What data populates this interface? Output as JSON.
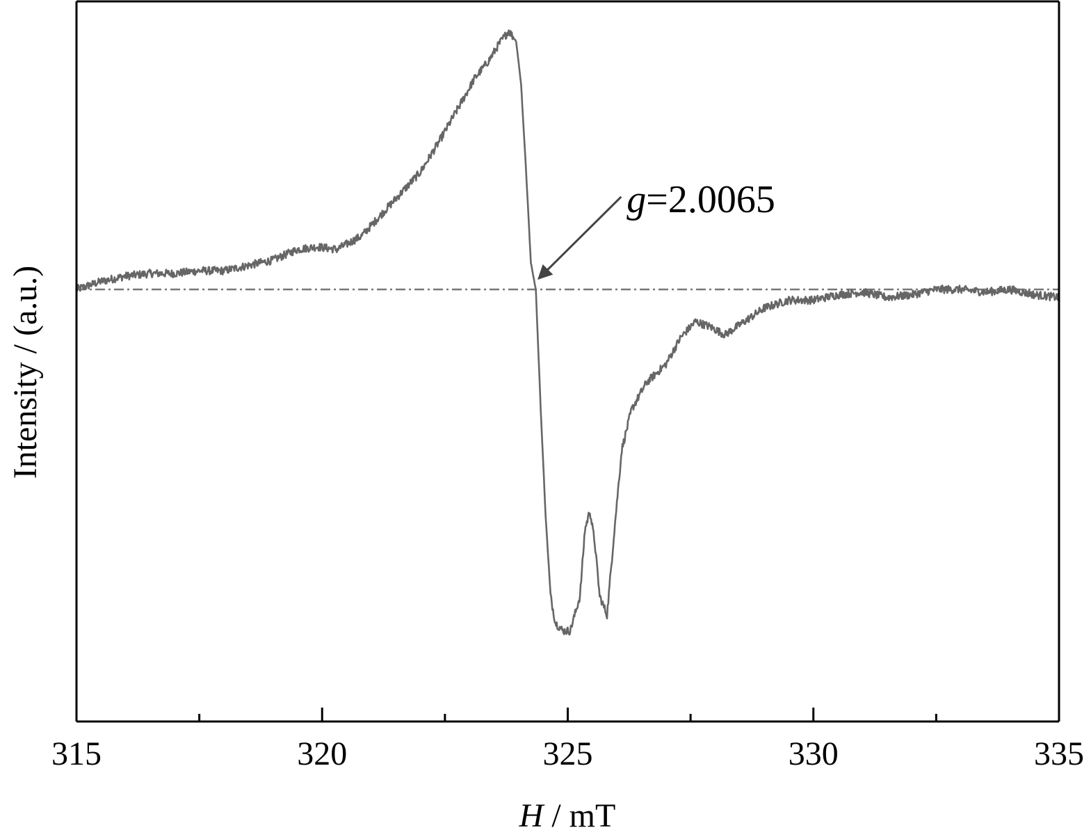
{
  "chart_data": {
    "type": "line",
    "title": "",
    "xlabel_italic": "H",
    "xlabel_rest": " / mT",
    "ylabel": "Intensity / (a.u.)",
    "xlim": [
      315,
      335
    ],
    "ylim": [
      -1.62,
      1.08
    ],
    "x_major_ticks": [
      315,
      320,
      325,
      330,
      335
    ],
    "x_minor_ticks": [
      317.5,
      322.5,
      327.5,
      332.5
    ],
    "x_tick_labels": [
      "315",
      "320",
      "325",
      "330",
      "335"
    ],
    "baseline_y": 0,
    "grid": false,
    "legend": "none",
    "colors": {
      "line": "#666666",
      "axis": "#000000",
      "baseline": "#777777",
      "arrow": "#444444"
    },
    "annotation": {
      "text_italic": "g",
      "text_rest": "=2.0065",
      "label_x": 326.2,
      "label_y": 0.29,
      "arrow_tip_x": 324.35,
      "arrow_tip_y": 0.03
    },
    "series": [
      {
        "points": [
          [
            315.0,
            0.0
          ],
          [
            315.5,
            0.03
          ],
          [
            316.0,
            0.05
          ],
          [
            316.5,
            0.06
          ],
          [
            317.0,
            0.06
          ],
          [
            317.5,
            0.07
          ],
          [
            318.0,
            0.07
          ],
          [
            318.5,
            0.09
          ],
          [
            319.0,
            0.11
          ],
          [
            319.5,
            0.15
          ],
          [
            319.9,
            0.16
          ],
          [
            320.3,
            0.15
          ],
          [
            320.8,
            0.2
          ],
          [
            321.2,
            0.28
          ],
          [
            321.6,
            0.36
          ],
          [
            322.0,
            0.44
          ],
          [
            322.4,
            0.56
          ],
          [
            322.8,
            0.69
          ],
          [
            323.1,
            0.79
          ],
          [
            323.4,
            0.86
          ],
          [
            323.6,
            0.92
          ],
          [
            323.8,
            0.97
          ],
          [
            323.95,
            0.93
          ],
          [
            324.05,
            0.77
          ],
          [
            324.15,
            0.45
          ],
          [
            324.25,
            0.1
          ],
          [
            324.35,
            0.0
          ],
          [
            324.45,
            -0.45
          ],
          [
            324.55,
            -0.85
          ],
          [
            324.65,
            -1.15
          ],
          [
            324.75,
            -1.25
          ],
          [
            324.9,
            -1.28
          ],
          [
            325.05,
            -1.28
          ],
          [
            325.25,
            -1.15
          ],
          [
            325.35,
            -0.9
          ],
          [
            325.45,
            -0.83
          ],
          [
            325.55,
            -0.95
          ],
          [
            325.65,
            -1.15
          ],
          [
            325.8,
            -1.22
          ],
          [
            325.95,
            -0.9
          ],
          [
            326.1,
            -0.6
          ],
          [
            326.3,
            -0.45
          ],
          [
            326.6,
            -0.35
          ],
          [
            327.0,
            -0.28
          ],
          [
            327.3,
            -0.18
          ],
          [
            327.6,
            -0.12
          ],
          [
            327.9,
            -0.14
          ],
          [
            328.2,
            -0.17
          ],
          [
            328.6,
            -0.12
          ],
          [
            329.0,
            -0.07
          ],
          [
            329.5,
            -0.04
          ],
          [
            330.0,
            -0.04
          ],
          [
            330.5,
            -0.02
          ],
          [
            331.0,
            -0.01
          ],
          [
            331.5,
            -0.03
          ],
          [
            332.0,
            -0.02
          ],
          [
            332.5,
            0.0
          ],
          [
            333.0,
            0.0
          ],
          [
            333.5,
            -0.01
          ],
          [
            334.0,
            0.0
          ],
          [
            334.5,
            -0.02
          ],
          [
            335.0,
            -0.03
          ]
        ]
      }
    ]
  }
}
